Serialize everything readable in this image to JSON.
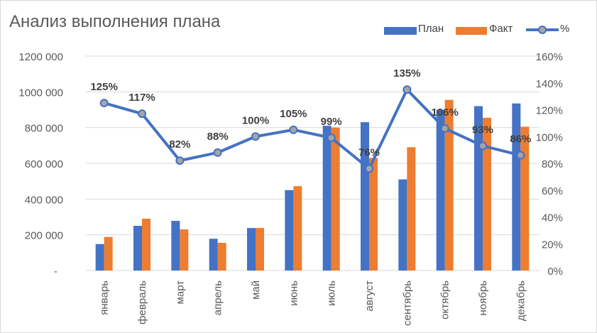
{
  "chart_data": {
    "type": "bar",
    "title": "Анализ выполнения плана",
    "categories": [
      "январь",
      "февраль",
      "март",
      "апрель",
      "май",
      "июнь",
      "июль",
      "август",
      "сентябрь",
      "октябрь",
      "ноябрь",
      "декабрь"
    ],
    "series": [
      {
        "name": "План",
        "type": "bar",
        "axis": "left",
        "color": "#4472c4",
        "values": [
          148000,
          250000,
          278000,
          178000,
          238000,
          450000,
          810000,
          830000,
          510000,
          900000,
          920000,
          935000
        ]
      },
      {
        "name": "Факт",
        "type": "bar",
        "axis": "left",
        "color": "#ed7d31",
        "values": [
          188000,
          290000,
          230000,
          155000,
          238000,
          472000,
          800000,
          630000,
          690000,
          955000,
          855000,
          805000
        ]
      },
      {
        "name": "%",
        "type": "line",
        "axis": "right",
        "color": "#4472c4",
        "values": [
          1.25,
          1.17,
          0.82,
          0.88,
          1.0,
          1.05,
          0.99,
          0.76,
          1.35,
          1.06,
          0.93,
          0.86
        ],
        "labels": [
          "125%",
          "117%",
          "82%",
          "88%",
          "100%",
          "105%",
          "99%",
          "76%",
          "135%",
          "106%",
          "93%",
          "86%"
        ]
      }
    ],
    "y_left": {
      "lim": [
        0,
        1200000
      ],
      "ticks": [
        "-",
        "200 000",
        "400 000",
        "600 000",
        "800 000",
        "1000 000",
        "1200 000"
      ]
    },
    "y_right": {
      "lim": [
        0,
        1.6
      ],
      "ticks": [
        "0%",
        "20%",
        "40%",
        "60%",
        "80%",
        "100%",
        "120%",
        "140%",
        "160%"
      ]
    },
    "grid": true,
    "legend_position": "top-right"
  },
  "legend": {
    "plan": "План",
    "fact": "Факт",
    "pct": "%"
  }
}
